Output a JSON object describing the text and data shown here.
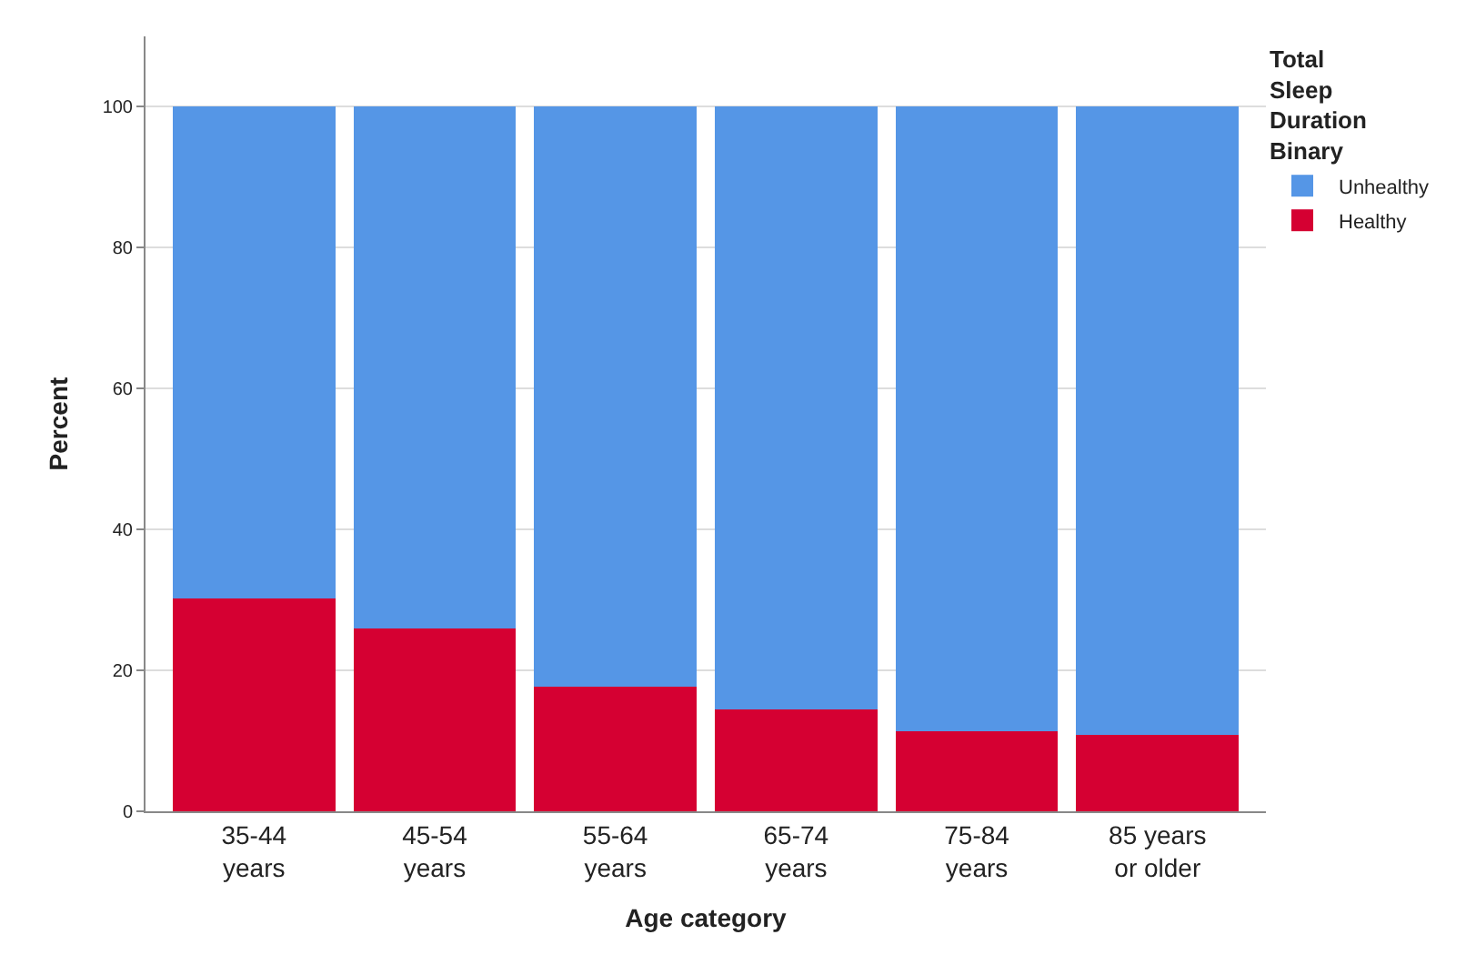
{
  "chart_data": {
    "type": "bar",
    "stacked": true,
    "xlabel": "Age category",
    "ylabel": "Percent",
    "legend_title": "Total Sleep Duration Binary",
    "categories": [
      "35-44 years",
      "45-54 years",
      "55-64 years",
      "65-74 years",
      "75-84 years",
      "85 years or older"
    ],
    "series": [
      {
        "name": "Healthy",
        "color": "#d50032",
        "values": [
          30.2,
          26.0,
          17.7,
          14.4,
          11.3,
          10.9
        ]
      },
      {
        "name": "Unhealthy",
        "color": "#5596e6",
        "values": [
          69.8,
          74.0,
          82.3,
          85.6,
          88.7,
          89.1
        ]
      }
    ],
    "ylim": [
      0,
      110
    ],
    "yticks": [
      0,
      20,
      40,
      60,
      80,
      100
    ],
    "grid": "y",
    "legend": "top right"
  }
}
